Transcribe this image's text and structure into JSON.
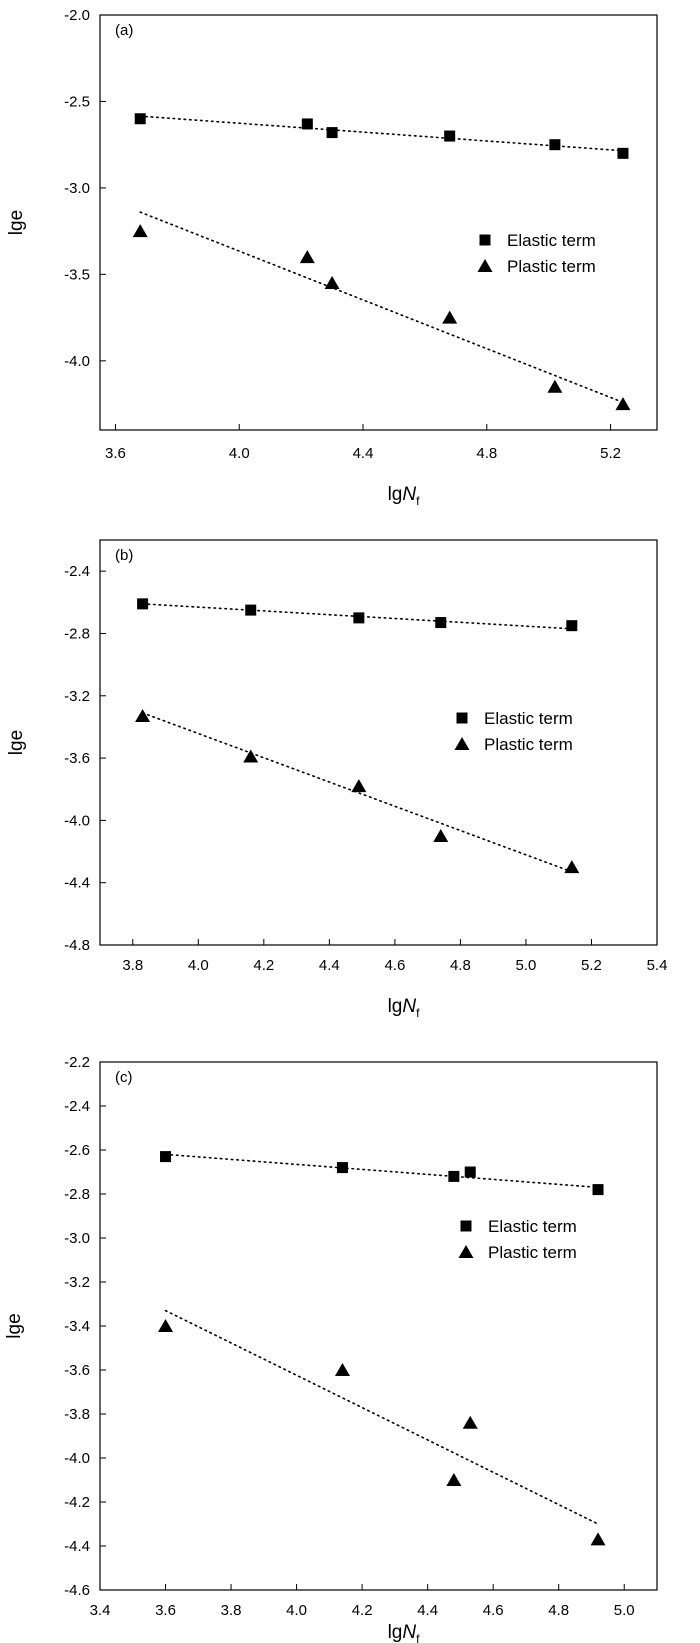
{
  "chart_data": [
    {
      "type": "scatter",
      "panel_label": "(a)",
      "xlabel": "lg",
      "xlabel_italic": "N",
      "xlabel_sub": "f",
      "ylabel": "lge",
      "xlim": [
        3.55,
        5.35
      ],
      "ylim": [
        -4.4,
        -2.0
      ],
      "xticks": [
        "3.6",
        "4.0",
        "4.4",
        "4.8",
        "5.2"
      ],
      "yticks": [
        "-2.0",
        "-2.5",
        "-3.0",
        "-3.5",
        "-4.0"
      ],
      "legend": {
        "position": "right-middle",
        "entries": [
          "Elastic term",
          "Plastic term"
        ]
      },
      "series": [
        {
          "name": "Elastic term",
          "marker": "square",
          "x": [
            3.68,
            4.22,
            4.3,
            4.68,
            5.02,
            5.24
          ],
          "y": [
            -2.6,
            -2.63,
            -2.68,
            -2.7,
            -2.75,
            -2.8
          ],
          "trend": [
            [
              3.68,
              -2.585
            ],
            [
              5.24,
              -2.785
            ]
          ]
        },
        {
          "name": "Plastic term",
          "marker": "triangle",
          "x": [
            3.68,
            4.22,
            4.3,
            4.68,
            5.02,
            5.24
          ],
          "y": [
            -3.25,
            -3.4,
            -3.55,
            -3.75,
            -4.15,
            -4.25
          ],
          "trend": [
            [
              3.68,
              -3.14
            ],
            [
              5.24,
              -4.24
            ]
          ]
        }
      ]
    },
    {
      "type": "scatter",
      "panel_label": "(b)",
      "xlabel": "lg",
      "xlabel_italic": "N",
      "xlabel_sub": "f",
      "ylabel": "lge",
      "xlim": [
        3.7,
        5.4
      ],
      "ylim": [
        -4.8,
        -2.2
      ],
      "xticks": [
        "3.8",
        "4.0",
        "4.2",
        "4.4",
        "4.6",
        "4.8",
        "5.0",
        "5.2",
        "5.4"
      ],
      "yticks": [
        "-2.4",
        "-2.8",
        "-3.2",
        "-3.6",
        "-4.0",
        "-4.4",
        "-4.8"
      ],
      "legend": {
        "position": "right-middle",
        "entries": [
          "Elastic term",
          "Plastic term"
        ]
      },
      "series": [
        {
          "name": "Elastic term",
          "marker": "square",
          "x": [
            3.83,
            4.16,
            4.49,
            4.74,
            5.14
          ],
          "y": [
            -2.61,
            -2.65,
            -2.7,
            -2.73,
            -2.75
          ],
          "trend": [
            [
              3.83,
              -2.61
            ],
            [
              5.14,
              -2.77
            ]
          ]
        },
        {
          "name": "Plastic term",
          "marker": "triangle",
          "x": [
            3.83,
            4.16,
            4.49,
            4.74,
            5.14
          ],
          "y": [
            -3.33,
            -3.59,
            -3.78,
            -4.1,
            -4.3
          ],
          "trend": [
            [
              3.83,
              -3.31
            ],
            [
              5.14,
              -4.33
            ]
          ]
        }
      ]
    },
    {
      "type": "scatter",
      "panel_label": "(c)",
      "xlabel": "lg",
      "xlabel_italic": "N",
      "xlabel_sub": "f",
      "ylabel": "lge",
      "xlim": [
        3.4,
        5.1
      ],
      "ylim": [
        -4.6,
        -2.2
      ],
      "xticks": [
        "3.4",
        "3.6",
        "3.8",
        "4.0",
        "4.2",
        "4.4",
        "4.6",
        "4.8",
        "5.0"
      ],
      "yticks": [
        "-2.2",
        "-2.4",
        "-2.6",
        "-2.8",
        "-3.0",
        "-3.2",
        "-3.4",
        "-3.6",
        "-3.8",
        "-4.0",
        "-4.2",
        "-4.4",
        "-4.6"
      ],
      "legend": {
        "position": "right-middle",
        "entries": [
          "Elastic term",
          "Plastic term"
        ]
      },
      "series": [
        {
          "name": "Elastic term",
          "marker": "square",
          "x": [
            3.6,
            4.14,
            4.48,
            4.53,
            4.92
          ],
          "y": [
            -2.63,
            -2.68,
            -2.72,
            -2.7,
            -2.78
          ],
          "trend": [
            [
              3.6,
              -2.62
            ],
            [
              4.92,
              -2.77
            ]
          ]
        },
        {
          "name": "Plastic term",
          "marker": "triangle",
          "x": [
            3.6,
            4.14,
            4.48,
            4.53,
            4.92
          ],
          "y": [
            -3.4,
            -3.6,
            -4.1,
            -3.84,
            -4.37
          ],
          "trend": [
            [
              3.6,
              -3.33
            ],
            [
              4.92,
              -4.3
            ]
          ]
        }
      ]
    }
  ]
}
